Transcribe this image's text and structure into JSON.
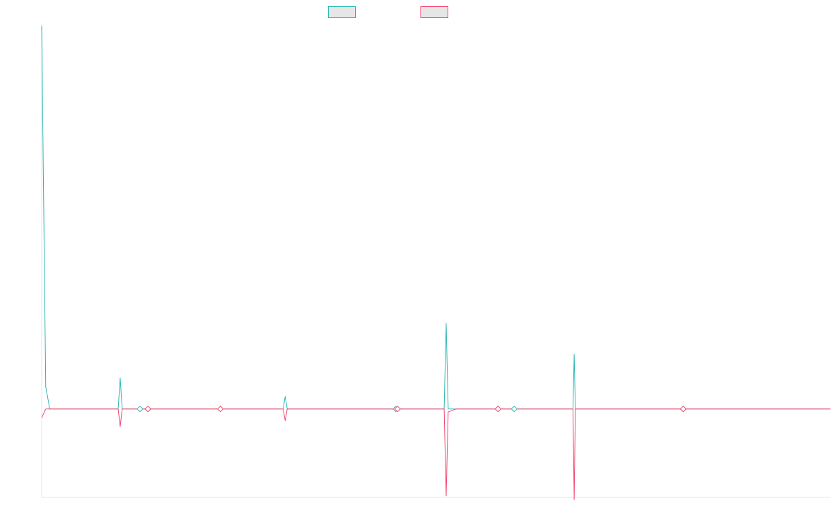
{
  "chart_data": {
    "type": "line",
    "title": "",
    "xlabel": "",
    "ylabel": "",
    "ylim": [
      -12,
      52
    ],
    "x_domain": [
      0,
      196
    ],
    "grid": false,
    "legend_position": "top-center",
    "series": [
      {
        "color": "#2ab7b1",
        "values": [
          {
            "x": 0,
            "y": 52
          },
          {
            "x": 1,
            "y": 3
          },
          {
            "x": 2,
            "y": 0
          },
          {
            "x": 19,
            "y": 0
          },
          {
            "x": 19.5,
            "y": 4.2
          },
          {
            "x": 20,
            "y": 0
          },
          {
            "x": 24,
            "y": 0
          },
          {
            "x": 24.4,
            "y": 0.1
          },
          {
            "x": 24.8,
            "y": 0
          },
          {
            "x": 26,
            "y": 0
          },
          {
            "x": 26.4,
            "y": 0.1
          },
          {
            "x": 26.8,
            "y": 0
          },
          {
            "x": 60,
            "y": 0
          },
          {
            "x": 60.5,
            "y": 1.7
          },
          {
            "x": 61,
            "y": 0
          },
          {
            "x": 100,
            "y": 0
          },
          {
            "x": 100.5,
            "y": 11.6
          },
          {
            "x": 101,
            "y": 0
          },
          {
            "x": 117,
            "y": 0
          },
          {
            "x": 117.4,
            "y": 0.1
          },
          {
            "x": 117.8,
            "y": 0
          },
          {
            "x": 132,
            "y": 0
          },
          {
            "x": 132.3,
            "y": 7.4
          },
          {
            "x": 132.6,
            "y": 0
          },
          {
            "x": 159,
            "y": 0
          },
          {
            "x": 159.4,
            "y": 0.1
          },
          {
            "x": 159.8,
            "y": 0
          },
          {
            "x": 196,
            "y": 0
          }
        ],
        "markers": [
          24.4,
          26.4,
          88,
          113.4,
          117.4,
          159.4
        ]
      },
      {
        "color": "#f2446e",
        "values": [
          {
            "x": 0,
            "y": -1.2
          },
          {
            "x": 1,
            "y": 0
          },
          {
            "x": 19,
            "y": 0
          },
          {
            "x": 19.5,
            "y": -2.4
          },
          {
            "x": 20,
            "y": 0
          },
          {
            "x": 44,
            "y": 0
          },
          {
            "x": 44.4,
            "y": -0.1
          },
          {
            "x": 44.8,
            "y": 0
          },
          {
            "x": 60,
            "y": 0
          },
          {
            "x": 60.5,
            "y": -1.6
          },
          {
            "x": 61,
            "y": 0
          },
          {
            "x": 88,
            "y": 0
          },
          {
            "x": 88.4,
            "y": -0.1
          },
          {
            "x": 88.8,
            "y": 0
          },
          {
            "x": 100,
            "y": 0
          },
          {
            "x": 100.5,
            "y": -11.8
          },
          {
            "x": 101,
            "y": -0.4
          },
          {
            "x": 103,
            "y": 0
          },
          {
            "x": 132,
            "y": 0
          },
          {
            "x": 132.3,
            "y": -12.3
          },
          {
            "x": 132.6,
            "y": 0
          },
          {
            "x": 196,
            "y": 0
          }
        ],
        "markers": [
          26.4,
          44.4,
          88.4,
          113.4,
          159.4
        ]
      }
    ]
  }
}
